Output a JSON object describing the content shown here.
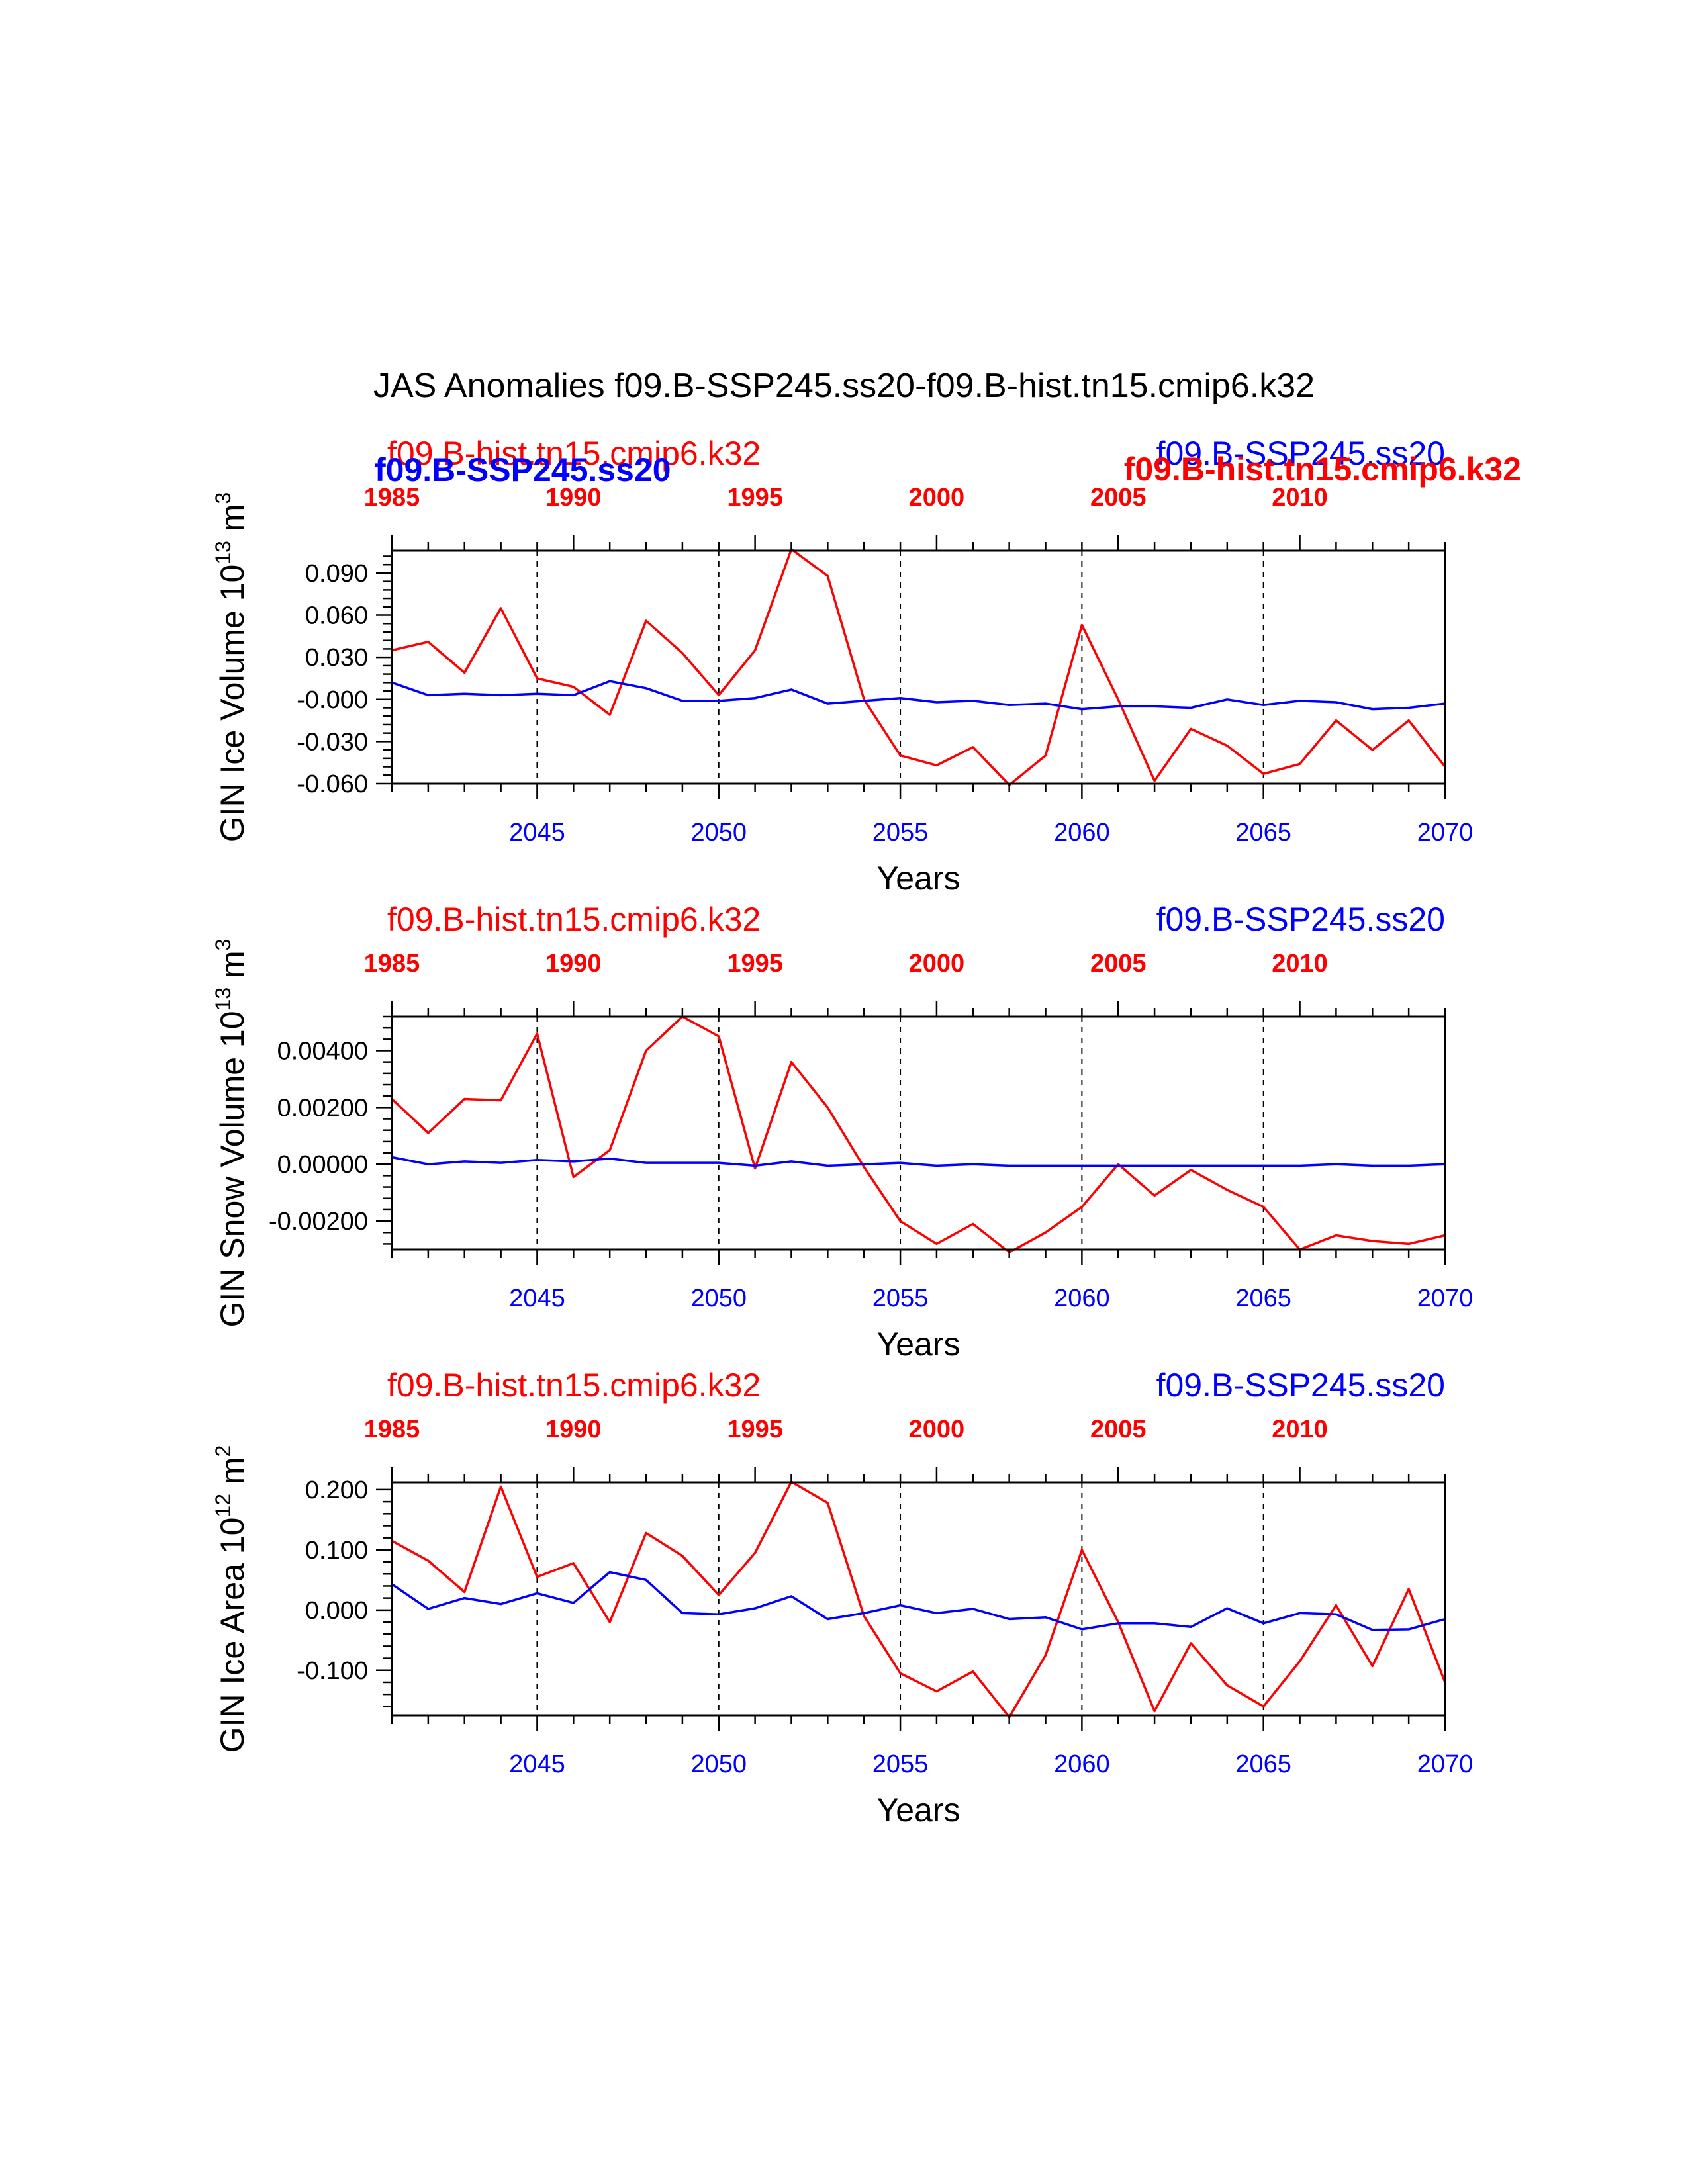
{
  "title": "JAS Anomalies f09.B-SSP245.ss20-f09.B-hist.tn15.cmip6.k32",
  "colors": {
    "hist": "#ff0000",
    "ssp": "#0000ff",
    "axis": "#000000"
  },
  "top_axis": {
    "ticks": [
      1985,
      1990,
      1995,
      2000,
      2005,
      2010
    ],
    "range": [
      1985,
      2014
    ]
  },
  "bottom_axis": {
    "ticks": [
      2045,
      2050,
      2055,
      2060,
      2065,
      2070
    ],
    "range": [
      2041,
      2070
    ]
  },
  "panel_header": {
    "overlay_labels": [
      {
        "text": "f09.B-SSP245.ss20",
        "series": "ssp",
        "bold": true,
        "anchor": "left"
      },
      {
        "text": "f09.B-hist.tn15.cmip6.k32",
        "series": "hist",
        "bold": true,
        "anchor": "right"
      }
    ]
  },
  "chart_data": [
    {
      "type": "line",
      "ylabel": "GIN Ice Volume 10",
      "ylabel_exp": "13",
      "ylabel_unit": " m",
      "ylabel_unit_exp": "3",
      "xlabel": "Years",
      "ylim": [
        -0.06,
        0.106
      ],
      "yticks": [
        -0.06,
        -0.03,
        0.0,
        0.03,
        0.06,
        0.09
      ],
      "ytick_labels": [
        "-0.060",
        "-0.030",
        "-0.000",
        "0.030",
        "0.060",
        "0.090"
      ],
      "top_label": "f09.B-hist.tn15.cmip6.k32",
      "right_label": "f09.B-SSP245.ss20",
      "show_overlay": true,
      "series": [
        {
          "name": "f09.B-hist.tn15.cmip6.k32",
          "color": "hist",
          "values": [
            0.035,
            0.041,
            0.019,
            0.065,
            0.015,
            0.009,
            -0.011,
            0.056,
            0.033,
            0.003,
            0.035,
            0.107,
            0.088,
            0.0,
            -0.04,
            -0.047,
            -0.034,
            -0.061,
            -0.04,
            0.053,
            0.0,
            -0.058,
            -0.021,
            -0.033,
            -0.053,
            -0.046,
            -0.015,
            -0.036,
            -0.015,
            -0.048
          ]
        },
        {
          "name": "f09.B-SSP245.ss20",
          "color": "ssp",
          "values": [
            0.012,
            0.003,
            0.004,
            0.003,
            0.004,
            0.003,
            0.013,
            0.008,
            -0.001,
            -0.001,
            0.001,
            0.007,
            -0.003,
            -0.001,
            0.001,
            -0.002,
            -0.001,
            -0.004,
            -0.003,
            -0.007,
            -0.005,
            -0.005,
            -0.006,
            0.0,
            -0.004,
            -0.001,
            -0.002,
            -0.007,
            -0.006,
            -0.003
          ]
        }
      ]
    },
    {
      "type": "line",
      "ylabel": "GIN Snow Volume 10",
      "ylabel_exp": "13",
      "ylabel_unit": " m",
      "ylabel_unit_exp": "3",
      "xlabel": "Years",
      "ylim": [
        -0.003,
        0.0052
      ],
      "yticks": [
        -0.002,
        0.0,
        0.002,
        0.004
      ],
      "ytick_labels": [
        "-0.00200",
        "0.00000",
        "0.00200",
        "0.00400"
      ],
      "top_label": "f09.B-hist.tn15.cmip6.k32",
      "right_label": "f09.B-SSP245.ss20",
      "show_overlay": false,
      "series": [
        {
          "name": "f09.B-hist.tn15.cmip6.k32",
          "color": "hist",
          "values": [
            0.0023,
            0.0011,
            0.0023,
            0.00225,
            0.0046,
            -0.00045,
            0.0005,
            0.004,
            0.0052,
            0.0045,
            -0.00015,
            0.0036,
            0.002,
            -0.0001,
            -0.002,
            -0.0028,
            -0.0021,
            -0.0031,
            -0.0024,
            -0.0015,
            0.0,
            -0.0011,
            -0.0002,
            -0.0009,
            -0.0015,
            -0.003,
            -0.0025,
            -0.0027,
            -0.0028,
            -0.0025
          ]
        },
        {
          "name": "f09.B-SSP245.ss20",
          "color": "ssp",
          "values": [
            0.00025,
            0.0,
            0.0001,
            5e-05,
            0.00015,
            0.0001,
            0.0002,
            5e-05,
            5e-05,
            5e-05,
            -5e-05,
            0.0001,
            -5e-05,
            0.0,
            5e-05,
            -5e-05,
            0.0,
            -5e-05,
            -5e-05,
            -5e-05,
            -5e-05,
            -5e-05,
            -5e-05,
            -5e-05,
            -5e-05,
            -5e-05,
            0.0,
            -5e-05,
            -5e-05,
            0.0
          ]
        }
      ]
    },
    {
      "type": "line",
      "ylabel": "GIN Ice Area 10",
      "ylabel_exp": "12",
      "ylabel_unit": " m",
      "ylabel_unit_exp": "2",
      "xlabel": "Years",
      "ylim": [
        -0.175,
        0.212
      ],
      "yticks": [
        -0.1,
        0.0,
        0.1,
        0.2
      ],
      "ytick_labels": [
        "-0.100",
        "0.000",
        "0.100",
        "0.200"
      ],
      "top_label": "f09.B-hist.tn15.cmip6.k32",
      "right_label": "f09.B-SSP245.ss20",
      "show_overlay": false,
      "series": [
        {
          "name": "f09.B-hist.tn15.cmip6.k32",
          "color": "hist",
          "values": [
            0.115,
            0.082,
            0.03,
            0.205,
            0.055,
            0.078,
            -0.02,
            0.128,
            0.09,
            0.025,
            0.095,
            0.213,
            0.178,
            -0.01,
            -0.105,
            -0.135,
            -0.102,
            -0.178,
            -0.075,
            0.1,
            -0.02,
            -0.168,
            -0.055,
            -0.125,
            -0.16,
            -0.085,
            0.008,
            -0.093,
            0.035,
            -0.12
          ]
        },
        {
          "name": "f09.B-SSP245.ss20",
          "color": "ssp",
          "values": [
            0.043,
            0.002,
            0.02,
            0.01,
            0.028,
            0.012,
            0.063,
            0.05,
            -0.005,
            -0.007,
            0.003,
            0.023,
            -0.015,
            -0.005,
            0.008,
            -0.005,
            0.002,
            -0.015,
            -0.012,
            -0.032,
            -0.022,
            -0.022,
            -0.028,
            0.003,
            -0.022,
            -0.005,
            -0.007,
            -0.033,
            -0.032,
            -0.015
          ]
        }
      ]
    }
  ]
}
